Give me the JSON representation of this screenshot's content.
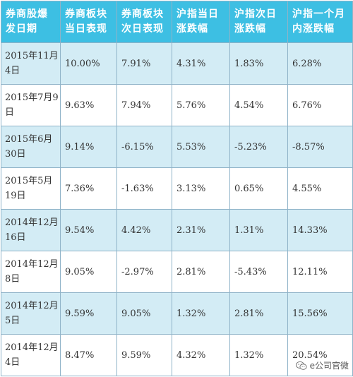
{
  "table": {
    "headers": [
      "券商股爆发日期",
      "券商板块当日表现",
      "券商板块次日表现",
      "沪指当日涨跌幅",
      "沪指次日涨跌幅",
      "沪指一个月内涨跌幅"
    ],
    "rows": [
      [
        "2015年11月4日",
        "10.00%",
        "7.91%",
        "4.31%",
        "1.83%",
        "6.28%"
      ],
      [
        "2015年7月9日",
        "9.63%",
        "7.94%",
        "5.76%",
        "4.54%",
        "6.76%"
      ],
      [
        "2015年6月30日",
        "9.14%",
        "-6.15%",
        "5.53%",
        "-5.23%",
        "-8.57%"
      ],
      [
        "2015年5月19日",
        "7.36%",
        "-1.63%",
        "3.13%",
        "0.65%",
        "4.55%"
      ],
      [
        "2014年12月16日",
        "9.54%",
        "4.42%",
        "2.31%",
        "1.31%",
        "14.33%"
      ],
      [
        "2014年12月8日",
        "9.05%",
        "-2.97%",
        "2.81%",
        "-5.43%",
        "12.11%"
      ],
      [
        "2014年12月5日",
        "9.59%",
        "9.05%",
        "1.32%",
        "2.81%",
        "15.56%"
      ],
      [
        "2014年12月4日",
        "8.47%",
        "9.59%",
        "4.32%",
        "1.32%",
        "20.54%"
      ]
    ]
  },
  "watermark": {
    "text": "e公司官微",
    "icon": "wechat-icon"
  },
  "colors": {
    "header_bg": "#3dbfe3",
    "header_text": "#ffffff",
    "stripe_bg": "#d3ecf5",
    "border": "#8fb3c8"
  }
}
